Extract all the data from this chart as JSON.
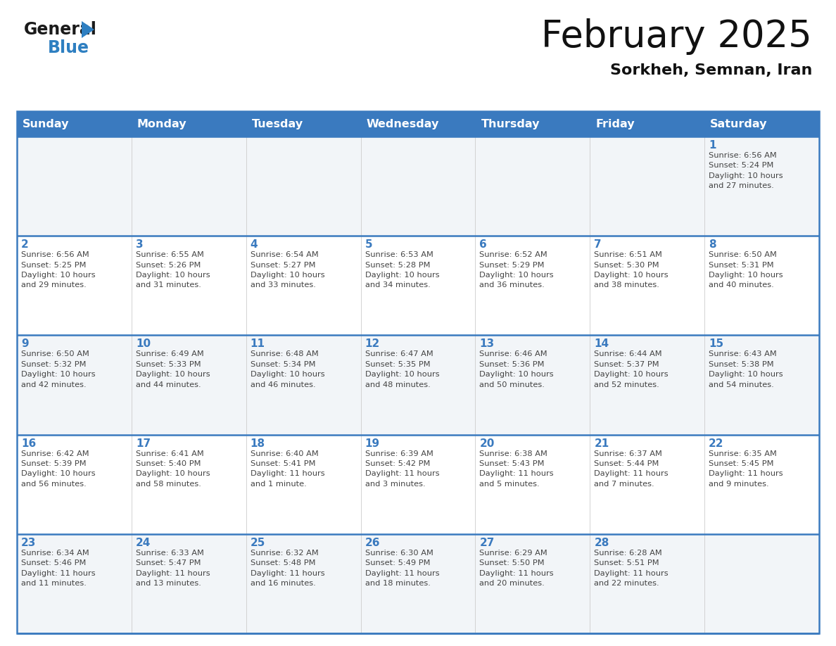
{
  "title": "February 2025",
  "subtitle": "Sorkheh, Semnan, Iran",
  "header_bg": "#3a7abf",
  "header_text_color": "#ffffff",
  "cell_bg_light": "#f2f5f8",
  "cell_bg_white": "#ffffff",
  "divider_color": "#3a7abf",
  "text_color": "#444444",
  "day_num_color": "#3a7abf",
  "day_headers": [
    "Sunday",
    "Monday",
    "Tuesday",
    "Wednesday",
    "Thursday",
    "Friday",
    "Saturday"
  ],
  "weeks": [
    [
      {
        "day": null,
        "info": null
      },
      {
        "day": null,
        "info": null
      },
      {
        "day": null,
        "info": null
      },
      {
        "day": null,
        "info": null
      },
      {
        "day": null,
        "info": null
      },
      {
        "day": null,
        "info": null
      },
      {
        "day": "1",
        "info": "Sunrise: 6:56 AM\nSunset: 5:24 PM\nDaylight: 10 hours\nand 27 minutes."
      }
    ],
    [
      {
        "day": "2",
        "info": "Sunrise: 6:56 AM\nSunset: 5:25 PM\nDaylight: 10 hours\nand 29 minutes."
      },
      {
        "day": "3",
        "info": "Sunrise: 6:55 AM\nSunset: 5:26 PM\nDaylight: 10 hours\nand 31 minutes."
      },
      {
        "day": "4",
        "info": "Sunrise: 6:54 AM\nSunset: 5:27 PM\nDaylight: 10 hours\nand 33 minutes."
      },
      {
        "day": "5",
        "info": "Sunrise: 6:53 AM\nSunset: 5:28 PM\nDaylight: 10 hours\nand 34 minutes."
      },
      {
        "day": "6",
        "info": "Sunrise: 6:52 AM\nSunset: 5:29 PM\nDaylight: 10 hours\nand 36 minutes."
      },
      {
        "day": "7",
        "info": "Sunrise: 6:51 AM\nSunset: 5:30 PM\nDaylight: 10 hours\nand 38 minutes."
      },
      {
        "day": "8",
        "info": "Sunrise: 6:50 AM\nSunset: 5:31 PM\nDaylight: 10 hours\nand 40 minutes."
      }
    ],
    [
      {
        "day": "9",
        "info": "Sunrise: 6:50 AM\nSunset: 5:32 PM\nDaylight: 10 hours\nand 42 minutes."
      },
      {
        "day": "10",
        "info": "Sunrise: 6:49 AM\nSunset: 5:33 PM\nDaylight: 10 hours\nand 44 minutes."
      },
      {
        "day": "11",
        "info": "Sunrise: 6:48 AM\nSunset: 5:34 PM\nDaylight: 10 hours\nand 46 minutes."
      },
      {
        "day": "12",
        "info": "Sunrise: 6:47 AM\nSunset: 5:35 PM\nDaylight: 10 hours\nand 48 minutes."
      },
      {
        "day": "13",
        "info": "Sunrise: 6:46 AM\nSunset: 5:36 PM\nDaylight: 10 hours\nand 50 minutes."
      },
      {
        "day": "14",
        "info": "Sunrise: 6:44 AM\nSunset: 5:37 PM\nDaylight: 10 hours\nand 52 minutes."
      },
      {
        "day": "15",
        "info": "Sunrise: 6:43 AM\nSunset: 5:38 PM\nDaylight: 10 hours\nand 54 minutes."
      }
    ],
    [
      {
        "day": "16",
        "info": "Sunrise: 6:42 AM\nSunset: 5:39 PM\nDaylight: 10 hours\nand 56 minutes."
      },
      {
        "day": "17",
        "info": "Sunrise: 6:41 AM\nSunset: 5:40 PM\nDaylight: 10 hours\nand 58 minutes."
      },
      {
        "day": "18",
        "info": "Sunrise: 6:40 AM\nSunset: 5:41 PM\nDaylight: 11 hours\nand 1 minute."
      },
      {
        "day": "19",
        "info": "Sunrise: 6:39 AM\nSunset: 5:42 PM\nDaylight: 11 hours\nand 3 minutes."
      },
      {
        "day": "20",
        "info": "Sunrise: 6:38 AM\nSunset: 5:43 PM\nDaylight: 11 hours\nand 5 minutes."
      },
      {
        "day": "21",
        "info": "Sunrise: 6:37 AM\nSunset: 5:44 PM\nDaylight: 11 hours\nand 7 minutes."
      },
      {
        "day": "22",
        "info": "Sunrise: 6:35 AM\nSunset: 5:45 PM\nDaylight: 11 hours\nand 9 minutes."
      }
    ],
    [
      {
        "day": "23",
        "info": "Sunrise: 6:34 AM\nSunset: 5:46 PM\nDaylight: 11 hours\nand 11 minutes."
      },
      {
        "day": "24",
        "info": "Sunrise: 6:33 AM\nSunset: 5:47 PM\nDaylight: 11 hours\nand 13 minutes."
      },
      {
        "day": "25",
        "info": "Sunrise: 6:32 AM\nSunset: 5:48 PM\nDaylight: 11 hours\nand 16 minutes."
      },
      {
        "day": "26",
        "info": "Sunrise: 6:30 AM\nSunset: 5:49 PM\nDaylight: 11 hours\nand 18 minutes."
      },
      {
        "day": "27",
        "info": "Sunrise: 6:29 AM\nSunset: 5:50 PM\nDaylight: 11 hours\nand 20 minutes."
      },
      {
        "day": "28",
        "info": "Sunrise: 6:28 AM\nSunset: 5:51 PM\nDaylight: 11 hours\nand 22 minutes."
      },
      {
        "day": null,
        "info": null
      }
    ]
  ],
  "logo_general_color": "#1a1a1a",
  "logo_blue_color": "#2e7fc1",
  "num_weeks": 5,
  "num_cols": 7,
  "fig_width": 11.88,
  "fig_height": 9.18,
  "dpi": 100
}
